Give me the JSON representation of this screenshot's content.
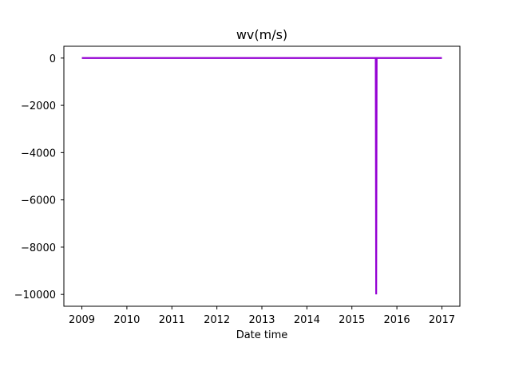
{
  "chart_data": {
    "type": "line",
    "title": "wv(m/s)",
    "xlabel": "Date time",
    "ylabel": "",
    "x_ticks": [
      "2009",
      "2010",
      "2011",
      "2012",
      "2013",
      "2014",
      "2015",
      "2016",
      "2017"
    ],
    "y_ticks": [
      "0",
      "−2000",
      "−4000",
      "−6000",
      "−8000",
      "−10000"
    ],
    "y_tick_values": [
      0,
      -2000,
      -4000,
      -6000,
      -8000,
      -10000
    ],
    "x_tick_values": [
      2009,
      2010,
      2011,
      2012,
      2013,
      2014,
      2015,
      2016,
      2017
    ],
    "xlim": [
      2008.6,
      2017.4
    ],
    "ylim": [
      -10500,
      500
    ],
    "grid": false,
    "series": [
      {
        "color": "#9400d3",
        "points": [
          [
            2009.0,
            2
          ],
          [
            2009.5,
            3
          ],
          [
            2010.0,
            2
          ],
          [
            2010.5,
            3
          ],
          [
            2011.0,
            2
          ],
          [
            2011.5,
            3
          ],
          [
            2012.0,
            2
          ],
          [
            2012.5,
            3
          ],
          [
            2013.0,
            2
          ],
          [
            2013.5,
            3
          ],
          [
            2014.0,
            2
          ],
          [
            2014.5,
            3
          ],
          [
            2015.0,
            2
          ],
          [
            2015.53,
            2
          ],
          [
            2015.54,
            -9999
          ],
          [
            2015.55,
            2
          ],
          [
            2016.0,
            3
          ],
          [
            2016.5,
            2
          ],
          [
            2017.0,
            3
          ]
        ]
      }
    ]
  }
}
